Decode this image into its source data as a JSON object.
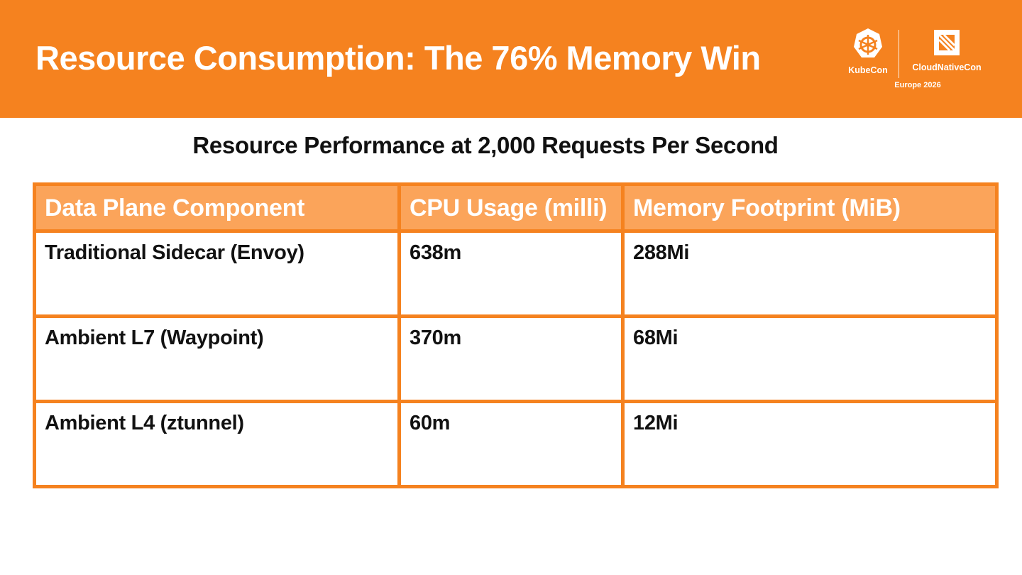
{
  "header": {
    "title": "Resource Consumption: The 76% Memory Win",
    "logo": {
      "kubecon_label": "KubeCon",
      "cloudnativecon_label": "CloudNativeCon",
      "event_label": "Europe 2026",
      "kubecon_icon": "kubernetes-helm-icon",
      "cncf_icon": "cncf-icon"
    }
  },
  "subtitle": "Resource Performance at 2,000 Requests Per Second",
  "table": {
    "headers": [
      "Data Plane Component",
      "CPU Usage (milli)",
      "Memory Footprint (MiB)"
    ],
    "rows": [
      [
        "Traditional Sidecar (Envoy)",
        "638m",
        "288Mi"
      ],
      [
        "Ambient L7 (Waypoint)",
        "370m",
        "68Mi"
      ],
      [
        "Ambient L4 (ztunnel)",
        "60m",
        "12Mi"
      ]
    ]
  },
  "colors": {
    "brand_orange": "#f5821f",
    "header_row": "#fba45a",
    "text": "#111111"
  }
}
